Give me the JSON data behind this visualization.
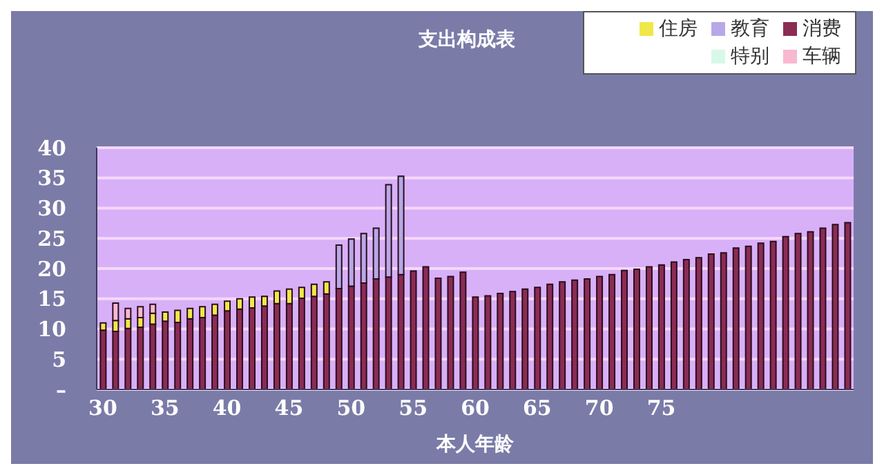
{
  "chart_data": {
    "type": "bar",
    "title": "支出构成表",
    "xlabel": "本人年龄",
    "stacked": true,
    "categories": [
      "30",
      null,
      null,
      null,
      null,
      "35",
      null,
      null,
      null,
      null,
      "40",
      null,
      null,
      null,
      null,
      "45",
      null,
      null,
      null,
      null,
      "50",
      null,
      null,
      null,
      null,
      "55",
      null,
      null,
      null,
      null,
      "60",
      null,
      null,
      null,
      null,
      "65",
      null,
      null,
      null,
      null,
      "70",
      null,
      null,
      null,
      null,
      "75",
      null,
      null,
      null,
      null,
      null,
      null,
      null,
      null,
      null,
      null,
      null,
      null,
      null,
      null,
      null
    ],
    "series": [
      {
        "name": "消费",
        "color": "#8b2c55",
        "values": [
          9.8,
          9.6,
          10.1,
          10.3,
          10.8,
          11.3,
          11.1,
          11.7,
          11.9,
          12.3,
          13.0,
          13.3,
          13.5,
          13.8,
          14.2,
          14.2,
          15.1,
          15.4,
          15.8,
          16.7,
          17.1,
          17.6,
          18.3,
          18.6,
          19.0,
          19.6,
          20.3,
          18.4,
          18.7,
          19.4,
          15.3,
          15.5,
          15.9,
          16.2,
          16.6,
          16.9,
          17.4,
          17.8,
          18.1,
          18.3,
          18.7,
          19.0,
          19.7,
          19.9,
          20.3,
          20.6,
          21.1,
          21.5,
          21.8,
          22.4,
          22.6,
          23.4,
          23.7,
          24.2,
          24.5,
          25.3,
          25.8,
          26.1,
          26.7,
          27.3,
          27.6
        ]
      },
      {
        "name": "住房",
        "color": "#f0e848",
        "values": [
          1.2,
          1.8,
          1.6,
          1.6,
          1.8,
          1.5,
          2.0,
          1.7,
          1.8,
          1.8,
          1.6,
          1.7,
          1.8,
          1.6,
          2.1,
          2.4,
          1.8,
          2.0,
          2.0,
          null,
          null,
          null,
          null,
          null,
          null,
          null,
          null,
          null,
          null,
          null,
          null,
          null,
          null,
          null,
          null,
          null,
          null,
          null,
          null,
          null,
          null,
          null,
          null,
          null,
          null,
          null,
          null,
          null,
          null,
          null,
          null,
          null,
          null,
          null,
          null,
          null,
          null,
          null,
          null,
          null,
          null
        ]
      },
      {
        "name": "教育",
        "color": "#b8a8e8",
        "values": [
          null,
          null,
          null,
          null,
          null,
          null,
          null,
          null,
          null,
          null,
          null,
          null,
          null,
          null,
          null,
          null,
          null,
          null,
          null,
          7.2,
          7.8,
          8.2,
          8.4,
          15.3,
          16.3,
          null,
          null,
          null,
          null,
          null,
          null,
          null,
          null,
          null,
          null,
          null,
          null,
          null,
          null,
          null,
          null,
          null,
          null,
          null,
          null,
          null,
          null,
          null,
          null,
          null,
          null,
          null,
          null,
          null,
          null,
          null,
          null,
          null,
          null,
          null,
          null
        ]
      },
      {
        "name": "车辆",
        "color": "#f8b8d0",
        "values": [
          null,
          2.9,
          1.7,
          1.8,
          1.5,
          null,
          null,
          null,
          null,
          null,
          null,
          null,
          null,
          null,
          null,
          null,
          null,
          null,
          null,
          null,
          null,
          null,
          null,
          null,
          null,
          null,
          null,
          null,
          null,
          null,
          null,
          null,
          null,
          null,
          null,
          null,
          null,
          null,
          null,
          null,
          null,
          null,
          null,
          null,
          null,
          null,
          null,
          null,
          null,
          null,
          null,
          null,
          null,
          null,
          null,
          null,
          null,
          null,
          null,
          null,
          null
        ]
      },
      {
        "name": "特别",
        "color": "#d8f8e8",
        "values": [
          null,
          null,
          null,
          null,
          null,
          null,
          null,
          null,
          null,
          null,
          null,
          null,
          null,
          null,
          null,
          null,
          null,
          null,
          null,
          null,
          null,
          null,
          null,
          null,
          null,
          null,
          null,
          null,
          null,
          null,
          null,
          null,
          null,
          null,
          null,
          null,
          null,
          null,
          null,
          null,
          null,
          null,
          null,
          null,
          null,
          null,
          null,
          null,
          null,
          null,
          null,
          null,
          null,
          null,
          null,
          null,
          null,
          null,
          null,
          null,
          null
        ]
      }
    ],
    "ylim": [
      0,
      40
    ],
    "yticks": [
      {
        "value": 0,
        "label": "–"
      },
      5,
      10,
      15,
      20,
      25,
      30,
      35,
      40
    ],
    "grid": "y",
    "legend": "top right"
  }
}
